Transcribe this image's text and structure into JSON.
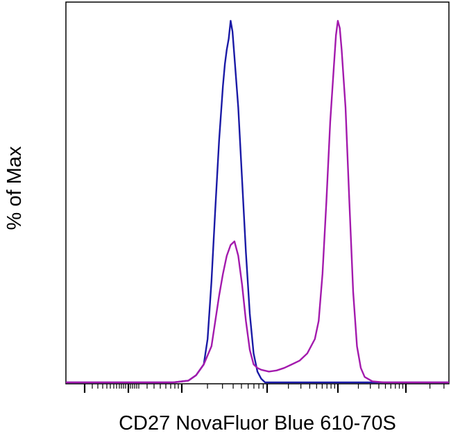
{
  "chart_data": {
    "type": "line",
    "title": "",
    "xlabel": "CD27 NovaFluor Blue 610-70S",
    "ylabel": "% of Max",
    "x_scale": "logicle",
    "x_tick_labels": [],
    "y_tick_labels": [],
    "ylim": [
      0,
      100
    ],
    "grid": false,
    "legend": "none",
    "series": [
      {
        "color": "#1a1aa6",
        "points": [
          [
            0.0,
            0
          ],
          [
            0.28,
            0
          ],
          [
            0.32,
            0.5
          ],
          [
            0.34,
            2
          ],
          [
            0.36,
            5
          ],
          [
            0.37,
            12
          ],
          [
            0.38,
            28
          ],
          [
            0.39,
            48
          ],
          [
            0.4,
            67
          ],
          [
            0.41,
            82
          ],
          [
            0.415,
            88
          ],
          [
            0.42,
            92
          ],
          [
            0.425,
            95
          ],
          [
            0.43,
            100
          ],
          [
            0.435,
            97
          ],
          [
            0.44,
            90
          ],
          [
            0.45,
            76
          ],
          [
            0.46,
            56
          ],
          [
            0.47,
            36
          ],
          [
            0.48,
            19
          ],
          [
            0.49,
            8
          ],
          [
            0.5,
            3
          ],
          [
            0.51,
            1
          ],
          [
            0.52,
            0
          ],
          [
            0.6,
            0
          ],
          [
            1.0,
            0
          ]
        ]
      },
      {
        "color": "#a31aad",
        "points": [
          [
            0.0,
            0
          ],
          [
            0.28,
            0
          ],
          [
            0.32,
            0.5
          ],
          [
            0.34,
            2
          ],
          [
            0.36,
            5
          ],
          [
            0.38,
            10
          ],
          [
            0.4,
            24
          ],
          [
            0.41,
            30
          ],
          [
            0.42,
            35
          ],
          [
            0.43,
            38
          ],
          [
            0.44,
            39
          ],
          [
            0.45,
            35
          ],
          [
            0.46,
            27
          ],
          [
            0.47,
            17
          ],
          [
            0.48,
            9
          ],
          [
            0.49,
            5
          ],
          [
            0.5,
            4
          ],
          [
            0.51,
            3.5
          ],
          [
            0.53,
            3
          ],
          [
            0.55,
            3.3
          ],
          [
            0.57,
            4
          ],
          [
            0.59,
            5
          ],
          [
            0.61,
            6
          ],
          [
            0.63,
            8
          ],
          [
            0.65,
            12
          ],
          [
            0.66,
            17
          ],
          [
            0.67,
            30
          ],
          [
            0.68,
            50
          ],
          [
            0.69,
            72
          ],
          [
            0.7,
            88
          ],
          [
            0.705,
            96
          ],
          [
            0.71,
            100
          ],
          [
            0.715,
            98
          ],
          [
            0.72,
            92
          ],
          [
            0.73,
            76
          ],
          [
            0.74,
            50
          ],
          [
            0.75,
            25
          ],
          [
            0.76,
            10
          ],
          [
            0.77,
            4
          ],
          [
            0.78,
            1.5
          ],
          [
            0.8,
            0.3
          ],
          [
            0.83,
            0
          ],
          [
            1.0,
            0
          ]
        ]
      }
    ]
  }
}
